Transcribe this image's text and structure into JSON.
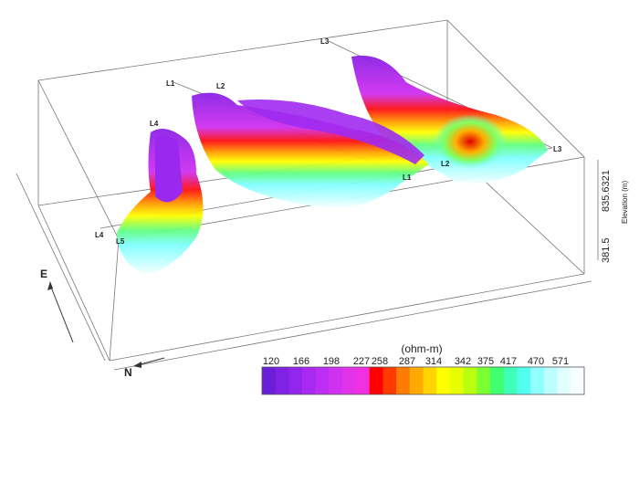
{
  "scene": {
    "line_labels": [
      "L3",
      "L1",
      "L2",
      "L4",
      "L4",
      "L5",
      "L1",
      "L2",
      "L3"
    ],
    "elevation_axis": {
      "title": "Elevation (m)",
      "max_label": "835.6321",
      "min_label": "381.5"
    },
    "direction_labels": [
      "E",
      "N"
    ]
  },
  "colorbar": {
    "title": "(ohm-m)",
    "ticks": [
      "120",
      "166",
      "198",
      "227",
      "258",
      "287",
      "314",
      "342",
      "375",
      "417",
      "470",
      "571"
    ],
    "colors": [
      "#6a1ed8",
      "#7f22e4",
      "#9326ee",
      "#a82af2",
      "#bd2ef4",
      "#d030f0",
      "#e232ea",
      "#f030e2",
      "#ff0000",
      "#ff3a00",
      "#ff7a00",
      "#ffaa00",
      "#ffd400",
      "#ffff00",
      "#e6ff00",
      "#b8ff10",
      "#7cff30",
      "#40ff70",
      "#40ffb8",
      "#50fff0",
      "#90ffff",
      "#bdffff",
      "#e2ffff",
      "#f8ffff"
    ]
  }
}
